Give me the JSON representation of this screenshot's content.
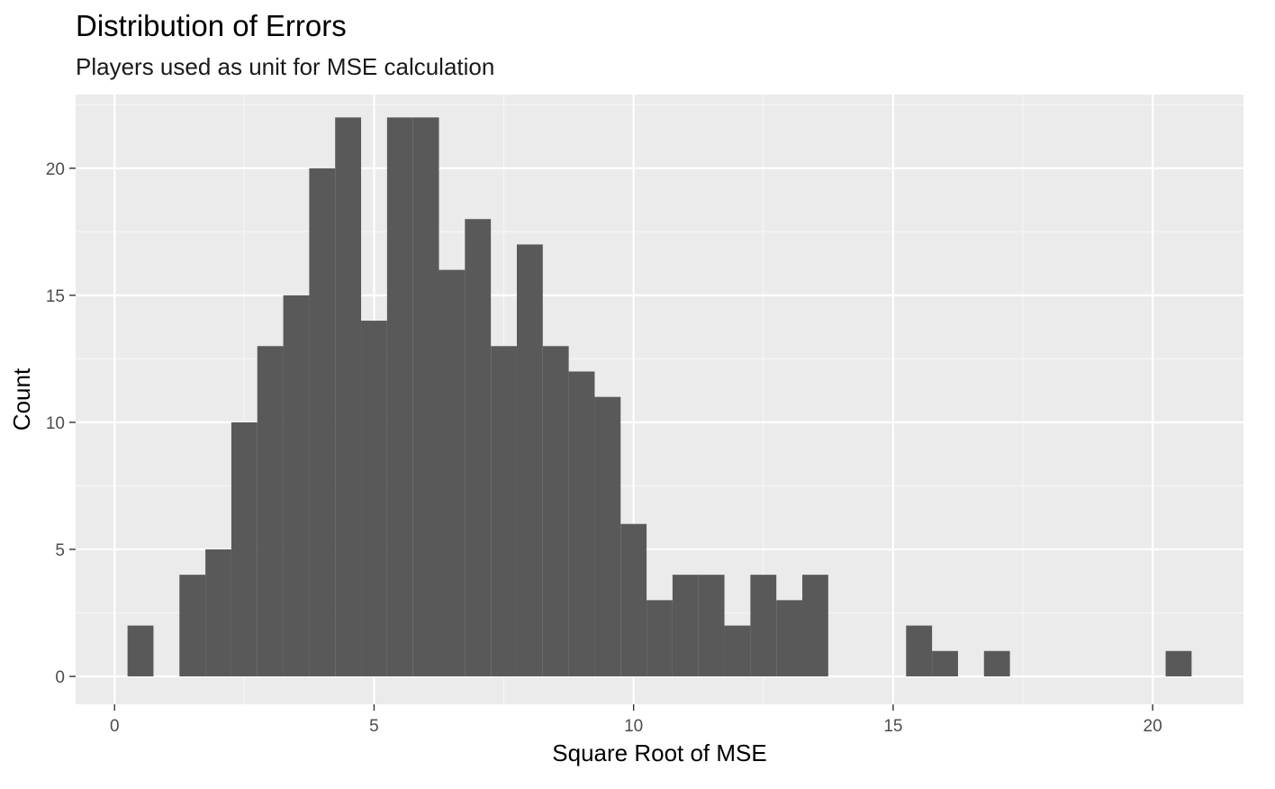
{
  "chart_data": {
    "type": "bar",
    "subtype": "histogram",
    "title": "Distribution of Errors",
    "subtitle": "Players used as unit for MSE calculation",
    "xlabel": "Square Root of MSE",
    "ylabel": "Count",
    "xlim": [
      -0.75,
      21.75
    ],
    "ylim": [
      -1.1,
      22.9
    ],
    "x_ticks": [
      0,
      5,
      10,
      15,
      20
    ],
    "y_ticks": [
      0,
      5,
      10,
      15,
      20
    ],
    "bin_width": 0.5,
    "bins": [
      {
        "x0": 0.25,
        "x1": 0.75,
        "count": 2
      },
      {
        "x0": 0.75,
        "x1": 1.25,
        "count": 0
      },
      {
        "x0": 1.25,
        "x1": 1.75,
        "count": 4
      },
      {
        "x0": 1.75,
        "x1": 2.25,
        "count": 5
      },
      {
        "x0": 2.25,
        "x1": 2.75,
        "count": 10
      },
      {
        "x0": 2.75,
        "x1": 3.25,
        "count": 13
      },
      {
        "x0": 3.25,
        "x1": 3.75,
        "count": 15
      },
      {
        "x0": 3.75,
        "x1": 4.25,
        "count": 20
      },
      {
        "x0": 4.25,
        "x1": 4.75,
        "count": 22
      },
      {
        "x0": 4.75,
        "x1": 5.25,
        "count": 14
      },
      {
        "x0": 5.25,
        "x1": 5.75,
        "count": 22
      },
      {
        "x0": 5.75,
        "x1": 6.25,
        "count": 22
      },
      {
        "x0": 6.25,
        "x1": 6.75,
        "count": 16
      },
      {
        "x0": 6.75,
        "x1": 7.25,
        "count": 18
      },
      {
        "x0": 7.25,
        "x1": 7.75,
        "count": 13
      },
      {
        "x0": 7.75,
        "x1": 8.25,
        "count": 17
      },
      {
        "x0": 8.25,
        "x1": 8.75,
        "count": 13
      },
      {
        "x0": 8.75,
        "x1": 9.25,
        "count": 12
      },
      {
        "x0": 9.25,
        "x1": 9.75,
        "count": 11
      },
      {
        "x0": 9.75,
        "x1": 10.25,
        "count": 6
      },
      {
        "x0": 10.25,
        "x1": 10.75,
        "count": 3
      },
      {
        "x0": 10.75,
        "x1": 11.25,
        "count": 4
      },
      {
        "x0": 11.25,
        "x1": 11.75,
        "count": 4
      },
      {
        "x0": 11.75,
        "x1": 12.25,
        "count": 2
      },
      {
        "x0": 12.25,
        "x1": 12.75,
        "count": 4
      },
      {
        "x0": 12.75,
        "x1": 13.25,
        "count": 3
      },
      {
        "x0": 13.25,
        "x1": 13.75,
        "count": 4
      },
      {
        "x0": 15.25,
        "x1": 15.75,
        "count": 2
      },
      {
        "x0": 15.75,
        "x1": 16.25,
        "count": 1
      },
      {
        "x0": 16.75,
        "x1": 17.25,
        "count": 1
      },
      {
        "x0": 20.25,
        "x1": 20.75,
        "count": 1
      }
    ],
    "grid": true,
    "legend": "none",
    "colors": {
      "bar_fill": "#595959",
      "panel_background": "#ebebeb",
      "grid_major": "#ffffff",
      "grid_minor": "#f5f5f5",
      "tick_text": "#4d4d4d",
      "tick_mark": "#333333"
    }
  }
}
